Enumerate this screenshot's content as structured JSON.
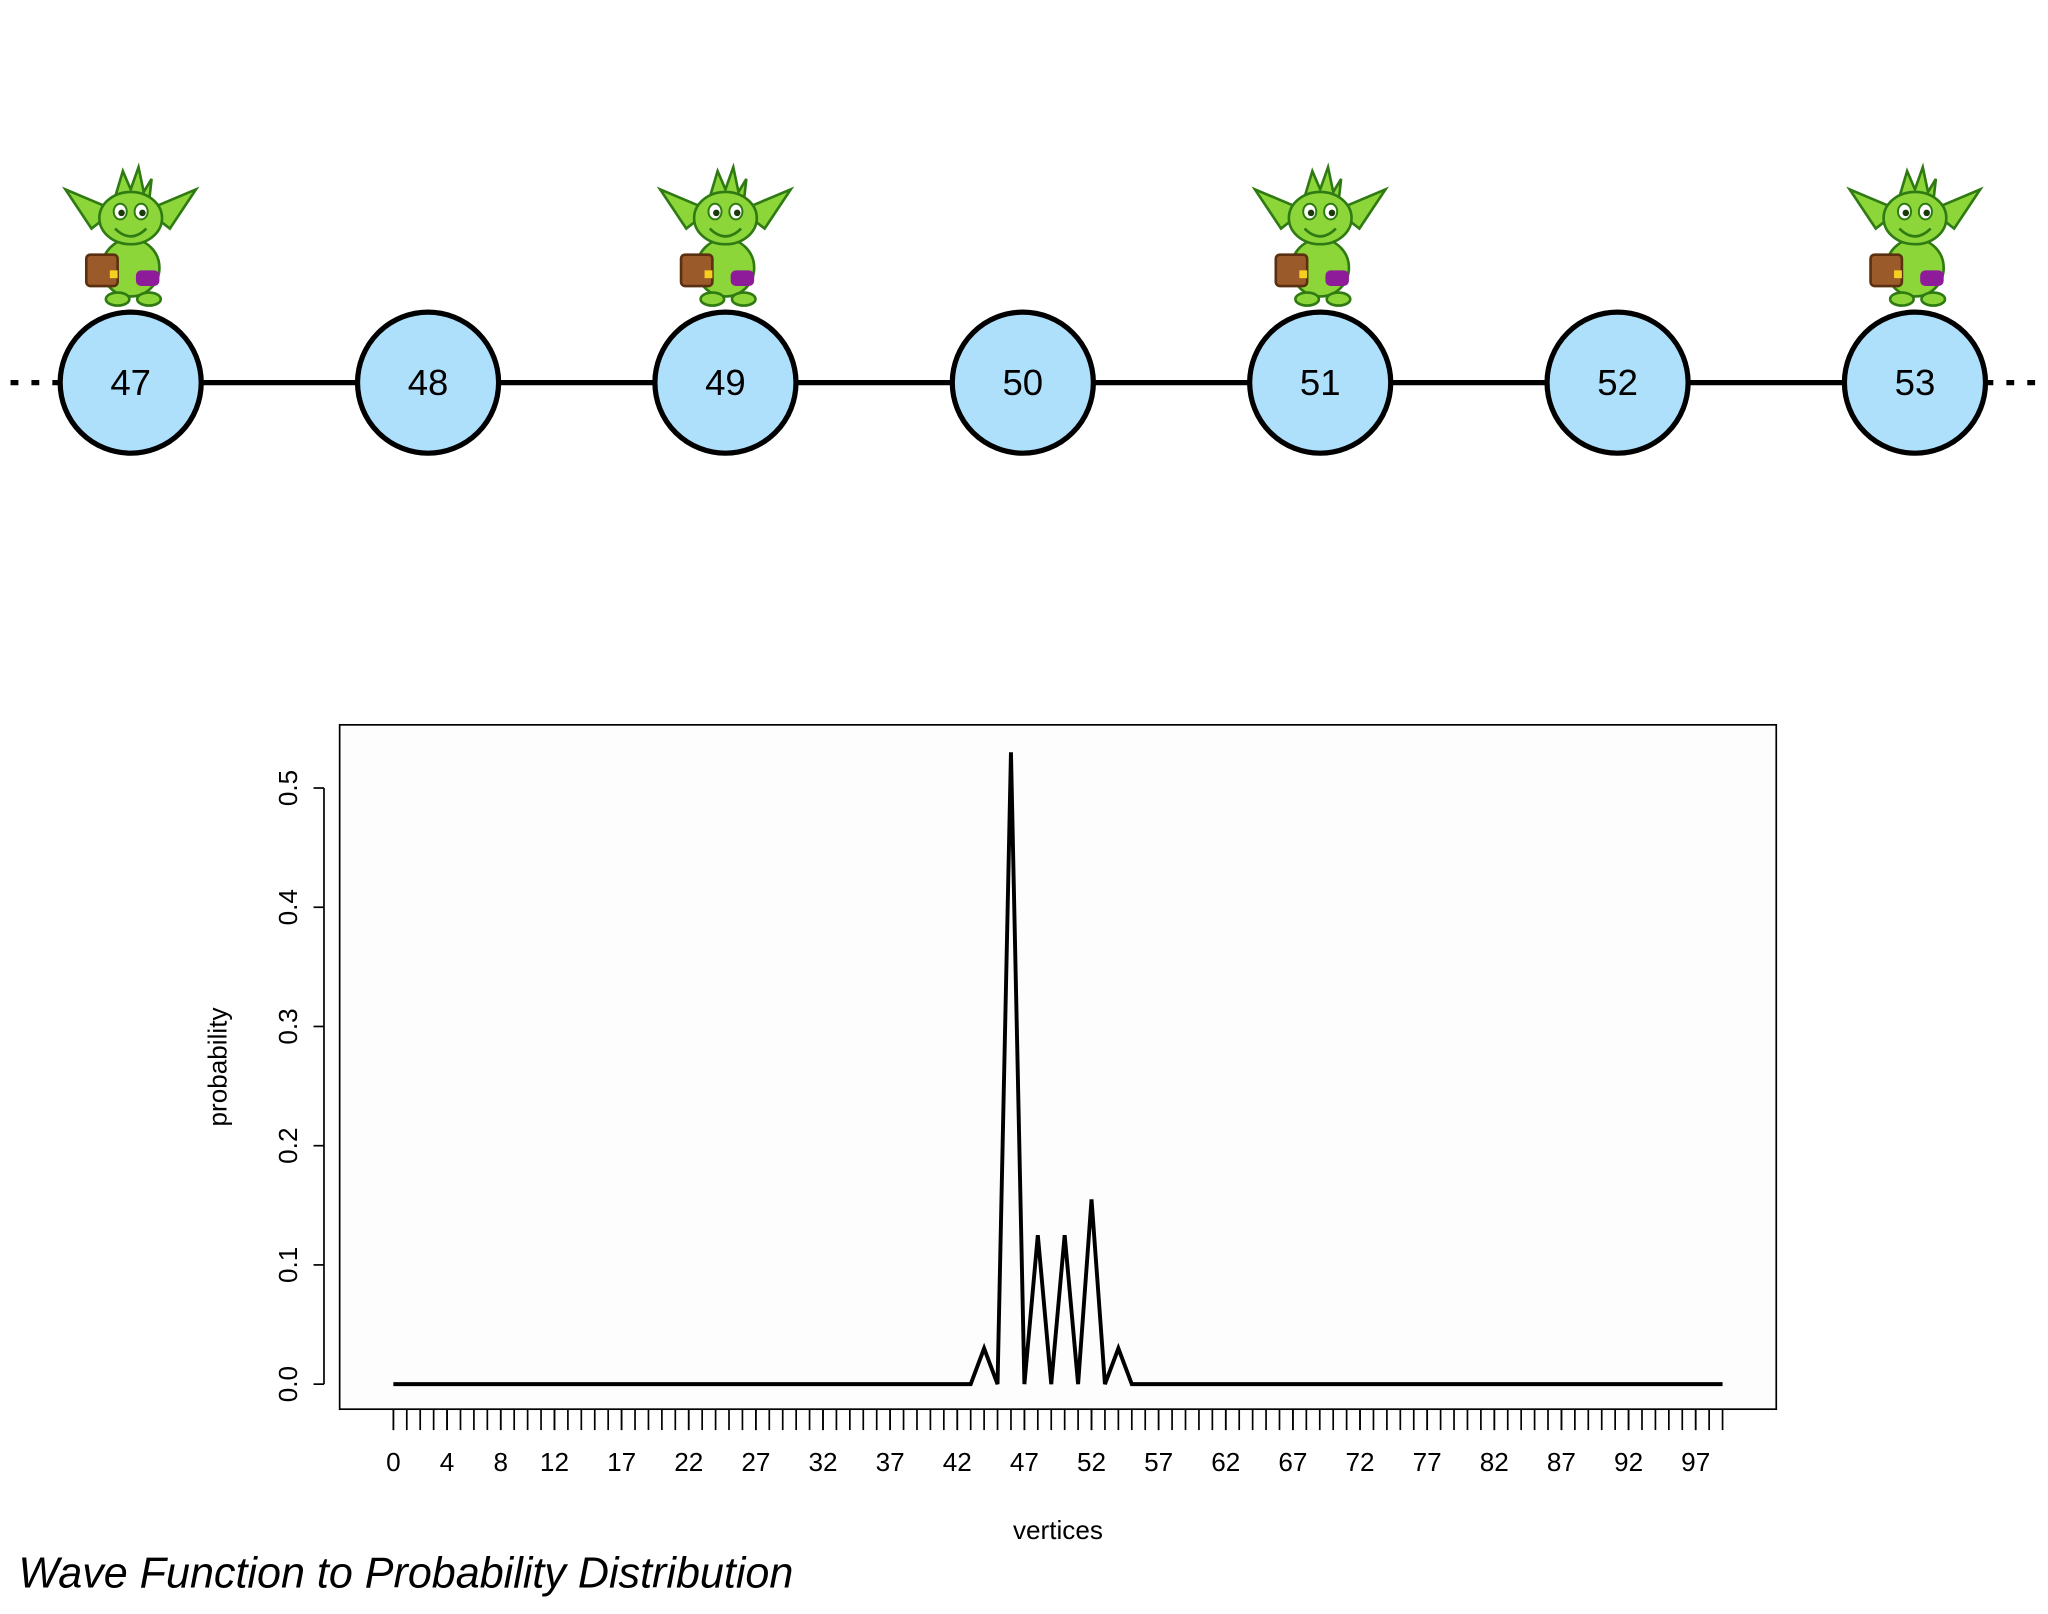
{
  "diagram": {
    "nodes": [
      {
        "label": "47",
        "walker": true
      },
      {
        "label": "48",
        "walker": false
      },
      {
        "label": "49",
        "walker": true
      },
      {
        "label": "50",
        "walker": false
      },
      {
        "label": "51",
        "walker": true
      },
      {
        "label": "52",
        "walker": false
      },
      {
        "label": "53",
        "walker": true
      }
    ]
  },
  "chart_data": {
    "type": "line",
    "x": [
      0,
      1,
      2,
      3,
      4,
      5,
      6,
      7,
      8,
      9,
      10,
      11,
      12,
      13,
      14,
      15,
      16,
      17,
      18,
      19,
      20,
      21,
      22,
      23,
      24,
      25,
      26,
      27,
      28,
      29,
      30,
      31,
      32,
      33,
      34,
      35,
      36,
      37,
      38,
      39,
      40,
      41,
      42,
      43,
      44,
      45,
      46,
      47,
      48,
      49,
      50,
      51,
      52,
      53,
      54,
      55,
      56,
      57,
      58,
      59,
      60,
      61,
      62,
      63,
      64,
      65,
      66,
      67,
      68,
      69,
      70,
      71,
      72,
      73,
      74,
      75,
      76,
      77,
      78,
      79,
      80,
      81,
      82,
      83,
      84,
      85,
      86,
      87,
      88,
      89,
      90,
      91,
      92,
      93,
      94,
      95,
      96,
      97,
      98,
      99
    ],
    "values": [
      0,
      0,
      0,
      0,
      0,
      0,
      0,
      0,
      0,
      0,
      0,
      0,
      0,
      0,
      0,
      0,
      0,
      0,
      0,
      0,
      0,
      0,
      0,
      0,
      0,
      0,
      0,
      0,
      0,
      0,
      0,
      0,
      0,
      0,
      0,
      0,
      0,
      0,
      0,
      0,
      0,
      0,
      0,
      0,
      0.03,
      0,
      0.53,
      0,
      0.125,
      0,
      0.125,
      0,
      0.155,
      0,
      0.03,
      0,
      0,
      0,
      0,
      0,
      0,
      0,
      0,
      0,
      0,
      0,
      0,
      0,
      0,
      0,
      0,
      0,
      0,
      0,
      0,
      0,
      0,
      0,
      0,
      0,
      0,
      0,
      0,
      0,
      0,
      0,
      0,
      0,
      0,
      0,
      0,
      0,
      0,
      0,
      0,
      0,
      0,
      0,
      0,
      0
    ],
    "color": "#000000",
    "xlim": [
      -4,
      103
    ],
    "ylim": [
      -0.021,
      0.553
    ],
    "xticks": [
      0,
      4,
      8,
      12,
      17,
      22,
      27,
      32,
      37,
      42,
      47,
      52,
      57,
      62,
      67,
      72,
      77,
      82,
      87,
      92,
      97
    ],
    "yticks": [
      {
        "value": 0,
        "label": "0.0"
      },
      0.1,
      0.2,
      0.3,
      0.4,
      0.5
    ],
    "xlabel": "vertices",
    "ylabel": "probability"
  },
  "caption": "Wave Function to Probability Distribution"
}
